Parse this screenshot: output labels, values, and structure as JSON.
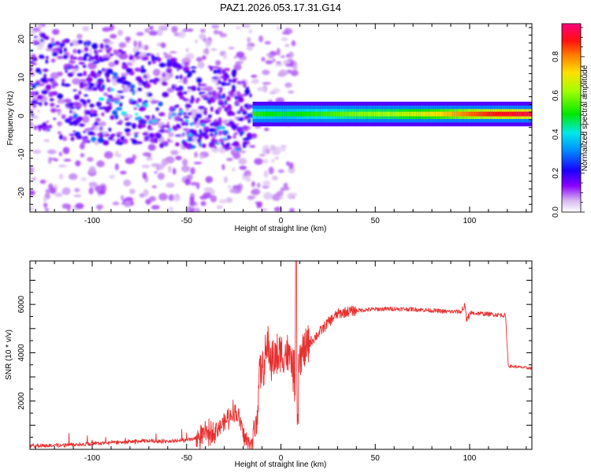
{
  "title": "PAZ1.2026.053.17.31.G14",
  "colors": {
    "snr_line": "#e83030",
    "axis": "#000000",
    "background": "#ffffff"
  },
  "chart_data": [
    {
      "type": "heatmap",
      "title": "PAZ1.2026.053.17.31.G14",
      "xlabel": "Height of straight line (km)",
      "ylabel": "Frequency (Hz)",
      "xlim": [
        -133,
        133
      ],
      "ylim": [
        -25,
        24
      ],
      "x_ticks": [
        -100,
        -50,
        0,
        50,
        100
      ],
      "y_ticks": [
        20,
        10,
        0,
        -10,
        -20
      ],
      "colorbar": {
        "label": "Normalized spectral amplitude",
        "range": [
          0.0,
          0.97
        ],
        "ticks": [
          0.0,
          0.2,
          0.4,
          0.6,
          0.8
        ],
        "colormap": "rainbow (white-violet-blue-cyan-green-yellow-orange-red-magenta)"
      },
      "ridge": {
        "description": "coherent signal near 0 Hz from about -15 km to 133 km",
        "x_start": -15,
        "x_end": 133,
        "frequency": 0.5,
        "amplitude_profile": [
          {
            "x": -15,
            "v": 0.55
          },
          {
            "x": 0,
            "v": 0.5
          },
          {
            "x": 20,
            "v": 0.55
          },
          {
            "x": 40,
            "v": 0.62
          },
          {
            "x": 60,
            "v": 0.65
          },
          {
            "x": 85,
            "v": 0.75
          },
          {
            "x": 100,
            "v": 0.85
          },
          {
            "x": 110,
            "v": 0.9
          },
          {
            "x": 133,
            "v": 0.95
          }
        ]
      }
    },
    {
      "type": "line",
      "xlabel": "Height of straight line (km)",
      "ylabel": "SNR (10 * v/v)",
      "xlim": [
        -133,
        133
      ],
      "ylim": [
        0,
        7800
      ],
      "x_ticks": [
        -100,
        -50,
        0,
        50,
        100
      ],
      "y_ticks": [
        2000,
        4000,
        6000
      ],
      "series": [
        {
          "name": "SNR",
          "points": [
            {
              "x": -133,
              "y": 150
            },
            {
              "x": -120,
              "y": 160
            },
            {
              "x": -100,
              "y": 230
            },
            {
              "x": -85,
              "y": 300
            },
            {
              "x": -70,
              "y": 350
            },
            {
              "x": -60,
              "y": 330
            },
            {
              "x": -50,
              "y": 380
            },
            {
              "x": -45,
              "y": 450
            },
            {
              "x": -40,
              "y": 600
            },
            {
              "x": -35,
              "y": 800
            },
            {
              "x": -30,
              "y": 1100
            },
            {
              "x": -25,
              "y": 1600
            },
            {
              "x": -22,
              "y": 1300
            },
            {
              "x": -20,
              "y": 600
            },
            {
              "x": -18,
              "y": 300
            },
            {
              "x": -15,
              "y": 250
            },
            {
              "x": -13,
              "y": 1200
            },
            {
              "x": -11,
              "y": 3300
            },
            {
              "x": -9,
              "y": 3400
            },
            {
              "x": -7,
              "y": 4300
            },
            {
              "x": -5,
              "y": 3700
            },
            {
              "x": -3,
              "y": 3800
            },
            {
              "x": 0,
              "y": 3900
            },
            {
              "x": 3,
              "y": 4000
            },
            {
              "x": 6,
              "y": 3500
            },
            {
              "x": 8,
              "y": 2600
            },
            {
              "x": 10,
              "y": 3700
            },
            {
              "x": 12,
              "y": 4000
            },
            {
              "x": 15,
              "y": 4400
            },
            {
              "x": 20,
              "y": 4800
            },
            {
              "x": 25,
              "y": 5250
            },
            {
              "x": 30,
              "y": 5600
            },
            {
              "x": 35,
              "y": 5700
            },
            {
              "x": 40,
              "y": 5750
            },
            {
              "x": 50,
              "y": 5800
            },
            {
              "x": 60,
              "y": 5820
            },
            {
              "x": 70,
              "y": 5800
            },
            {
              "x": 80,
              "y": 5750
            },
            {
              "x": 88,
              "y": 5700
            },
            {
              "x": 95,
              "y": 5700
            },
            {
              "x": 100,
              "y": 5650
            },
            {
              "x": 110,
              "y": 5600
            },
            {
              "x": 119,
              "y": 5550
            },
            {
              "x": 120.5,
              "y": 3450
            },
            {
              "x": 133,
              "y": 3350
            }
          ],
          "annotations": [
            {
              "x": 8,
              "y": 7800,
              "label": "spike"
            },
            {
              "x": 9,
              "y": 1000,
              "label": "dip"
            },
            {
              "x": 97,
              "y": 6100,
              "label": "spike"
            }
          ]
        }
      ]
    }
  ]
}
